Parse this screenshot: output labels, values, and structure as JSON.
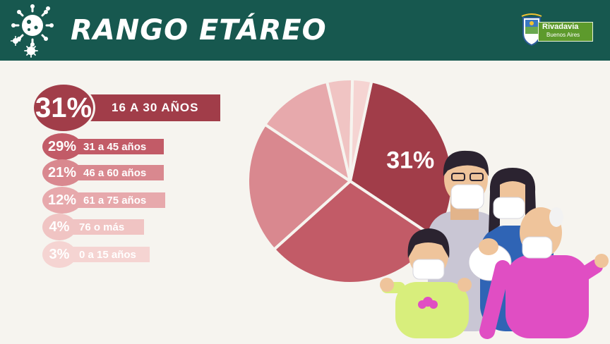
{
  "header": {
    "title": "RANGO ETÁREO",
    "logo_line1": "Rivadavia",
    "logo_line2": "Buenos Aires",
    "icon": "virus-icon",
    "color": "#17584f"
  },
  "legend": [
    {
      "pct": "31%",
      "label": "16 A 30 AÑOS",
      "color": "#a13d49"
    },
    {
      "pct": "29%",
      "label": "31 a 45 años",
      "color": "#c25b67"
    },
    {
      "pct": "21%",
      "label": "46 a 60 años",
      "color": "#d9888f"
    },
    {
      "pct": "12%",
      "label": "61 a 75 años",
      "color": "#e7a9ac"
    },
    {
      "pct": "4%",
      "label": "76 o más",
      "color": "#f0c4c3"
    },
    {
      "pct": "3%",
      "label": "0 a 15 años",
      "color": "#f5d4d2"
    }
  ],
  "chart_data": {
    "type": "pie",
    "categories": [
      "16 A 30 AÑOS",
      "31 a 45 años",
      "46 a 60 años",
      "61 a 75 años",
      "76 o más",
      "0 a 15 años"
    ],
    "values": [
      31,
      29,
      21,
      12,
      4,
      3
    ],
    "data_label": "31%",
    "colors": [
      "#a13d49",
      "#c25b67",
      "#d9888f",
      "#e7a9ac",
      "#f0c4c3",
      "#f5d4d2"
    ]
  }
}
